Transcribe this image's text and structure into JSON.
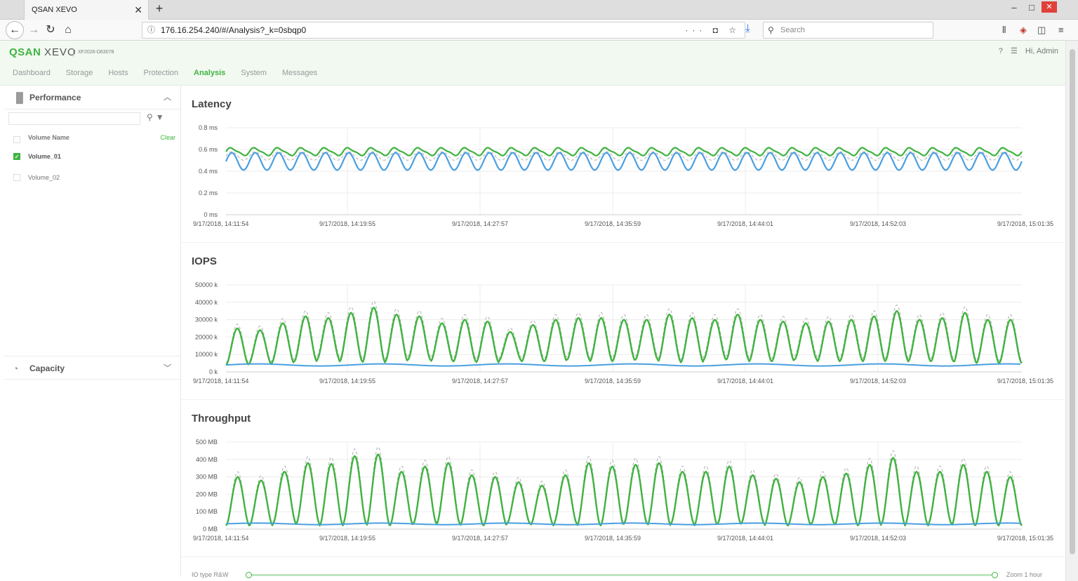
{
  "browser": {
    "tab_title": "QSAN XEVO",
    "url": "176.16.254.240/#/Analysis?_k=0sbqp0",
    "search_placeholder": "Search"
  },
  "app": {
    "brand_q": "QSAN",
    "brand_x": "XEVO",
    "model": "XF2026-D63078",
    "user": "Hi, Admin",
    "menu": [
      "Dashboard",
      "Storage",
      "Hosts",
      "Protection",
      "Analysis",
      "System",
      "Messages"
    ],
    "active_menu": "Analysis"
  },
  "sidebar": {
    "performance_label": "Performance",
    "capacity_label": "Capacity",
    "volume_header": "Volume Name",
    "clear_label": "Clear",
    "volumes": [
      {
        "name": "Volume_01",
        "checked": true
      },
      {
        "name": "Volume_02",
        "checked": false
      }
    ]
  },
  "footer": {
    "io_type": "IO type R&W",
    "zoom": "Zoom 1 hour"
  },
  "colors": {
    "green": "#3fb33f",
    "blue": "#4a9fe0",
    "dash": "#bbbbbb"
  },
  "chart_data": [
    {
      "type": "line",
      "title": "Latency",
      "y_ticks": [
        "0 ms",
        "0.2 ms",
        "0.4 ms",
        "0.6 ms",
        "0.8 ms"
      ],
      "ylim": [
        0,
        0.8
      ],
      "x_ticks": [
        "9/17/2018, 14:11:54",
        "9/17/2018, 14:19:55",
        "9/17/2018, 14:27:57",
        "9/17/2018, 14:35:59",
        "9/17/2018, 14:44:01",
        "9/17/2018, 14:52:03",
        "9/17/2018, 15:01:35"
      ],
      "series": [
        {
          "color": "green",
          "style": "solid",
          "base": 0.58,
          "amp": 0.04
        },
        {
          "color": "dash",
          "style": "dashed",
          "base": 0.54,
          "amp": 0.05
        },
        {
          "color": "blue",
          "style": "solid",
          "base": 0.49,
          "amp": 0.08
        }
      ]
    },
    {
      "type": "line",
      "title": "IOPS",
      "y_ticks": [
        "0 k",
        "10000 k",
        "20000 k",
        "30000 k",
        "40000 k",
        "50000 k"
      ],
      "ylim": [
        0,
        50000
      ],
      "x_ticks": [
        "9/17/2018, 14:11:54",
        "9/17/2018, 14:19:55",
        "9/17/2018, 14:27:57",
        "9/17/2018, 14:35:59",
        "9/17/2018, 14:44:01",
        "9/17/2018, 14:52:03",
        "9/17/2018, 15:01:35"
      ],
      "peaks": [
        25000,
        24000,
        28000,
        32000,
        31000,
        34000,
        37000,
        33000,
        32000,
        28000,
        30000,
        29000,
        23000,
        27000,
        30000,
        31000,
        31000,
        30000,
        30000,
        33000,
        31000,
        30000,
        33000,
        30000,
        29000,
        28000,
        29000,
        30000,
        32000,
        35000,
        30000,
        31000,
        34000,
        30000,
        30000
      ],
      "troughs": [
        4000,
        4500,
        5000,
        6000,
        7000,
        6000,
        5500,
        6000,
        7000,
        6000,
        6000,
        5500,
        6500,
        6000,
        6000,
        7000,
        6000,
        6500,
        7000,
        6000,
        5500,
        7000,
        7000,
        6000,
        6000,
        7000,
        6000,
        6500,
        6000,
        6500,
        6000,
        6000,
        5500,
        5000,
        5000
      ],
      "blue_level": 4000
    },
    {
      "type": "line",
      "title": "Throughput",
      "y_ticks": [
        "0 MB",
        "100 MB",
        "200 MB",
        "300 MB",
        "400 MB",
        "500 MB"
      ],
      "ylim": [
        0,
        500
      ],
      "x_ticks": [
        "9/17/2018, 14:11:54",
        "9/17/2018, 14:19:55",
        "9/17/2018, 14:27:57",
        "9/17/2018, 14:35:59",
        "9/17/2018, 14:44:01",
        "9/17/2018, 14:52:03",
        "9/17/2018, 15:01:35"
      ],
      "peaks": [
        300,
        280,
        330,
        380,
        375,
        420,
        430,
        330,
        360,
        380,
        310,
        300,
        270,
        250,
        310,
        380,
        360,
        370,
        380,
        330,
        330,
        360,
        310,
        290,
        270,
        300,
        320,
        370,
        410,
        330,
        330,
        370,
        330,
        300
      ],
      "troughs": [
        20,
        20,
        30,
        30,
        20,
        30,
        20,
        20,
        30,
        30,
        20,
        20,
        30,
        20,
        30,
        20,
        20,
        30,
        20,
        30,
        20,
        30,
        30,
        20,
        20,
        30,
        20,
        20,
        30,
        20,
        30,
        20,
        20,
        20
      ],
      "blue_level": 30
    }
  ]
}
